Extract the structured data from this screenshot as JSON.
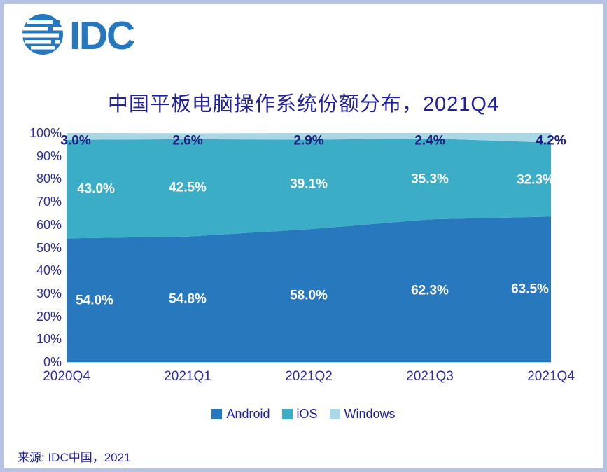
{
  "logo": {
    "text": "IDC"
  },
  "source": "来源: IDC中国，2021",
  "colors": {
    "brand_blue": "#2577be",
    "title_navy": "#21219b",
    "axis_navy": "#2e2e9d",
    "value_navy": "#1b1f7e",
    "frame": "#b6c3e7",
    "baseline": "#c9d5ea",
    "background": "#ffffff"
  },
  "chart_data": {
    "type": "area",
    "stacked": true,
    "title": "中国平板电脑操作系统份额分布，2021Q4",
    "xlabel": "",
    "ylabel": "",
    "ylim": [
      0,
      100
    ],
    "grid": false,
    "legend_position": "bottom",
    "categories": [
      "2020Q4",
      "2021Q1",
      "2021Q2",
      "2021Q3",
      "2021Q4"
    ],
    "series": [
      {
        "name": "Android",
        "color": "#2878bd",
        "label_color": "#ffffff",
        "values": [
          54.0,
          54.8,
          58.0,
          62.3,
          63.5
        ],
        "label_dx": [
          40,
          0,
          0,
          0,
          -30
        ]
      },
      {
        "name": "iOS",
        "color": "#3badc7",
        "label_color": "#ffffff",
        "values": [
          43.0,
          42.5,
          39.1,
          35.3,
          32.3
        ],
        "label_dx": [
          42,
          0,
          0,
          0,
          -22
        ]
      },
      {
        "name": "Windows",
        "color": "#a9d7e6",
        "label_color": "#1b1f7e",
        "values": [
          3.0,
          2.6,
          2.9,
          2.4,
          4.2
        ],
        "label_dx": [
          13,
          0,
          0,
          0,
          0
        ]
      }
    ],
    "y_tick_labels": [
      "100%",
      "90%",
      "80%",
      "70%",
      "60%",
      "50%",
      "40%",
      "30%",
      "20%",
      "10%",
      "0%"
    ]
  }
}
